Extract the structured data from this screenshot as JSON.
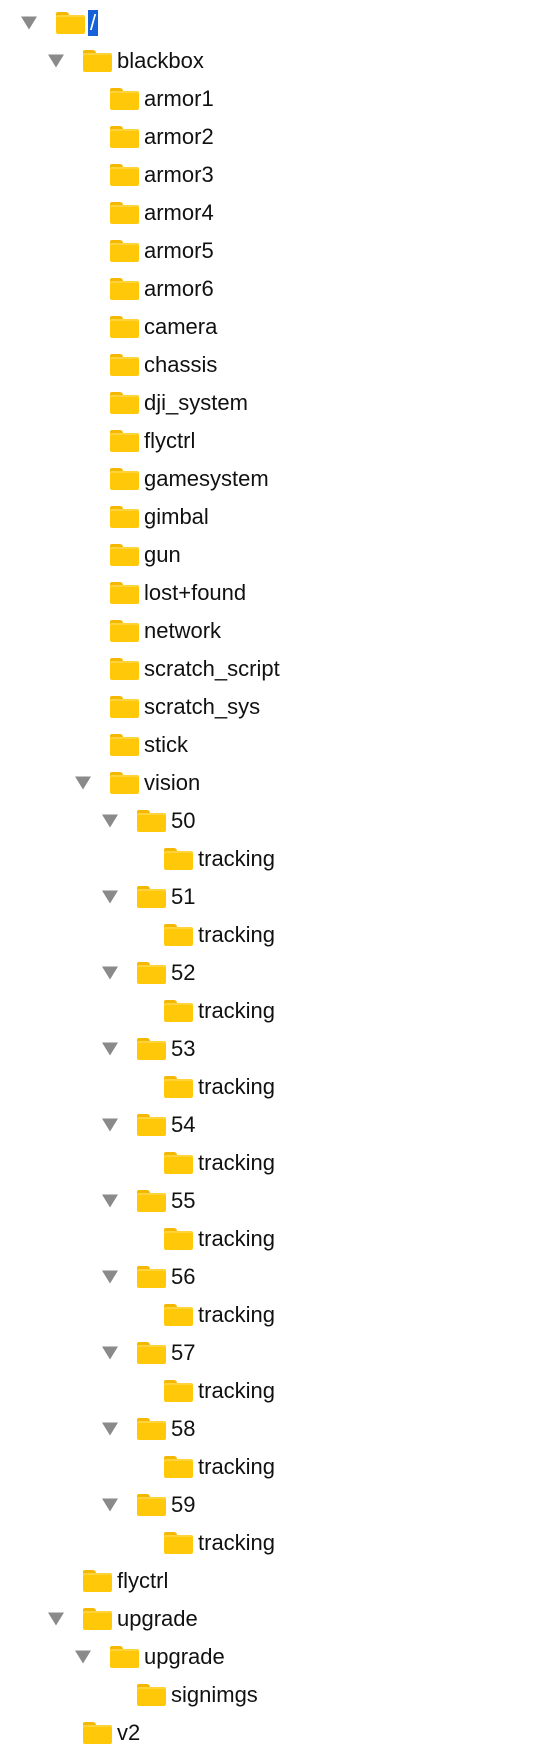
{
  "tree": {
    "nodes": [
      {
        "label": "/",
        "depth": 0,
        "expanded": true,
        "selected": true
      },
      {
        "label": "blackbox",
        "depth": 1,
        "expanded": true
      },
      {
        "label": "armor1",
        "depth": 2
      },
      {
        "label": "armor2",
        "depth": 2
      },
      {
        "label": "armor3",
        "depth": 2
      },
      {
        "label": "armor4",
        "depth": 2
      },
      {
        "label": "armor5",
        "depth": 2
      },
      {
        "label": "armor6",
        "depth": 2
      },
      {
        "label": "camera",
        "depth": 2
      },
      {
        "label": "chassis",
        "depth": 2
      },
      {
        "label": "dji_system",
        "depth": 2
      },
      {
        "label": "flyctrl",
        "depth": 2
      },
      {
        "label": "gamesystem",
        "depth": 2
      },
      {
        "label": "gimbal",
        "depth": 2
      },
      {
        "label": "gun",
        "depth": 2
      },
      {
        "label": "lost+found",
        "depth": 2
      },
      {
        "label": "network",
        "depth": 2
      },
      {
        "label": "scratch_script",
        "depth": 2
      },
      {
        "label": "scratch_sys",
        "depth": 2
      },
      {
        "label": "stick",
        "depth": 2
      },
      {
        "label": "vision",
        "depth": 2,
        "expanded": true
      },
      {
        "label": "50",
        "depth": 3,
        "expanded": true
      },
      {
        "label": "tracking",
        "depth": 4
      },
      {
        "label": "51",
        "depth": 3,
        "expanded": true
      },
      {
        "label": "tracking",
        "depth": 4
      },
      {
        "label": "52",
        "depth": 3,
        "expanded": true
      },
      {
        "label": "tracking",
        "depth": 4
      },
      {
        "label": "53",
        "depth": 3,
        "expanded": true
      },
      {
        "label": "tracking",
        "depth": 4
      },
      {
        "label": "54",
        "depth": 3,
        "expanded": true
      },
      {
        "label": "tracking",
        "depth": 4
      },
      {
        "label": "55",
        "depth": 3,
        "expanded": true
      },
      {
        "label": "tracking",
        "depth": 4
      },
      {
        "label": "56",
        "depth": 3,
        "expanded": true
      },
      {
        "label": "tracking",
        "depth": 4
      },
      {
        "label": "57",
        "depth": 3,
        "expanded": true
      },
      {
        "label": "tracking",
        "depth": 4
      },
      {
        "label": "58",
        "depth": 3,
        "expanded": true
      },
      {
        "label": "tracking",
        "depth": 4
      },
      {
        "label": "59",
        "depth": 3,
        "expanded": true
      },
      {
        "label": "tracking",
        "depth": 4
      },
      {
        "label": "flyctrl",
        "depth": 1
      },
      {
        "label": "upgrade",
        "depth": 1,
        "expanded": true
      },
      {
        "label": "upgrade",
        "depth": 2,
        "expanded": true
      },
      {
        "label": "signimgs",
        "depth": 3
      },
      {
        "label": "v2",
        "depth": 1
      }
    ],
    "icons": {
      "folder": "folder-icon",
      "disclosure_expanded": "disclosure-triangle-down-icon"
    },
    "colors": {
      "folder": "#ffc90a",
      "disclosure": "#8a8a8a",
      "selection": "#1660d8"
    }
  }
}
